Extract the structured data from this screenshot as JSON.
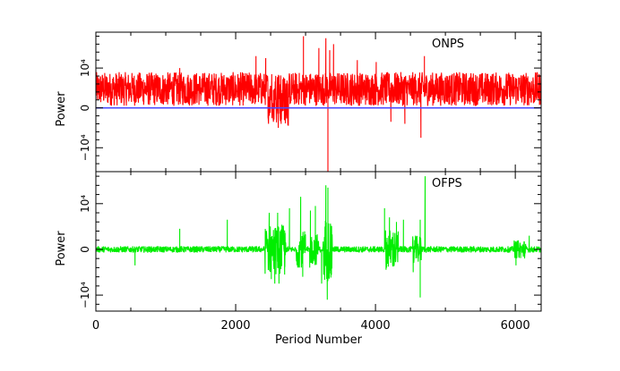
{
  "chart_data": [
    {
      "type": "line",
      "panel_label": "ONPS",
      "ylabel": "Power",
      "xlim": [
        0,
        6370
      ],
      "ylim": [
        -16000,
        19000
      ],
      "y_ticks": [
        {
          "value": 10000,
          "label": "10⁴"
        },
        {
          "value": 0,
          "label": "0"
        },
        {
          "value": -10000,
          "label": "−10⁴"
        }
      ],
      "series": [
        {
          "color": "#ff0000",
          "baseline": 4500,
          "noise_range": [
            500,
            9000
          ],
          "spikes": [
            [
              2970,
              18000
            ],
            [
              3190,
              15000
            ],
            [
              3290,
              17500
            ],
            [
              3320,
              -17000
            ],
            [
              3345,
              14500
            ],
            [
              3400,
              16000
            ],
            [
              4650,
              -7500
            ],
            [
              4700,
              13000
            ],
            [
              2540,
              -3500
            ],
            [
              2610,
              -5000
            ],
            [
              2650,
              -4000
            ],
            [
              2700,
              -3000
            ],
            [
              4220,
              -3500
            ],
            [
              4420,
              -4000
            ],
            [
              1200,
              10000
            ],
            [
              2290,
              13000
            ],
            [
              2430,
              12500
            ],
            [
              3740,
              12000
            ],
            [
              4010,
              11500
            ]
          ],
          "excursion_regions": [
            [
              2450,
              2800,
              -5000
            ]
          ]
        },
        {
          "color": "#4b4bff",
          "baseline": 0
        }
      ]
    },
    {
      "type": "line",
      "panel_label": "OFPS",
      "xlabel": "Period Number",
      "ylabel": "Power",
      "xlim": [
        0,
        6370
      ],
      "ylim": [
        -13500,
        17000
      ],
      "x_ticks": [
        0,
        2000,
        4000,
        6000
      ],
      "y_ticks": [
        {
          "value": 10000,
          "label": "10⁴"
        },
        {
          "value": 0,
          "label": "0"
        },
        {
          "value": -10000,
          "label": "−10⁴"
        }
      ],
      "series": [
        {
          "color": "#00ee00",
          "baseline": 0,
          "noise_range": [
            -700,
            700
          ],
          "bursts": [
            [
              2420,
              2720,
              5500
            ],
            [
              2870,
              3000,
              4000
            ],
            [
              3070,
              3190,
              3500
            ],
            [
              3250,
              3380,
              7000
            ],
            [
              4140,
              4330,
              4500
            ],
            [
              4530,
              4660,
              3000
            ],
            [
              5980,
              6150,
              2000
            ]
          ],
          "spikes": [
            [
              1200,
              4500
            ],
            [
              1880,
              6500
            ],
            [
              2480,
              8000
            ],
            [
              2600,
              8000
            ],
            [
              2770,
              9000
            ],
            [
              2930,
              11500
            ],
            [
              3070,
              8500
            ],
            [
              3140,
              9500
            ],
            [
              3290,
              14000
            ],
            [
              3320,
              13500
            ],
            [
              3230,
              -7500
            ],
            [
              3310,
              -11000
            ],
            [
              4130,
              9000
            ],
            [
              4200,
              7000
            ],
            [
              4300,
              6000
            ],
            [
              4400,
              6500
            ],
            [
              4540,
              -5000
            ],
            [
              4640,
              -10500
            ],
            [
              4710,
              16000
            ],
            [
              4640,
              6500
            ],
            [
              560,
              -3500
            ],
            [
              2510,
              -6500
            ],
            [
              2560,
              -7500
            ],
            [
              2620,
              -7500
            ],
            [
              2700,
              -5500
            ],
            [
              2960,
              -6000
            ],
            [
              3060,
              -4000
            ],
            [
              6010,
              -3500
            ],
            [
              6200,
              3000
            ]
          ]
        }
      ]
    }
  ]
}
